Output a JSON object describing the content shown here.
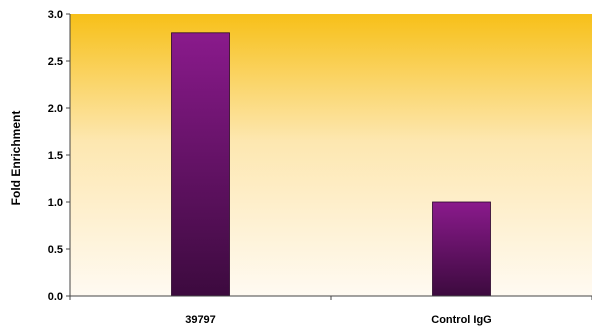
{
  "chart_data": {
    "type": "bar",
    "title": "",
    "xlabel": "",
    "ylabel": "Fold Enrichment",
    "categories": [
      "39797",
      "Control IgG"
    ],
    "values": [
      2.8,
      1.0
    ],
    "ylim": [
      0,
      3.0
    ],
    "yticks": [
      "0.0",
      "0.5",
      "1.0",
      "1.5",
      "2.0",
      "2.5",
      "3.0"
    ],
    "grid": false,
    "legend": "none",
    "colors": {
      "bar_top": "#8a1a8c",
      "bar_bottom": "#3c0a3e",
      "background_top": "#f7c018",
      "background_bottom": "#fffaf2"
    }
  }
}
